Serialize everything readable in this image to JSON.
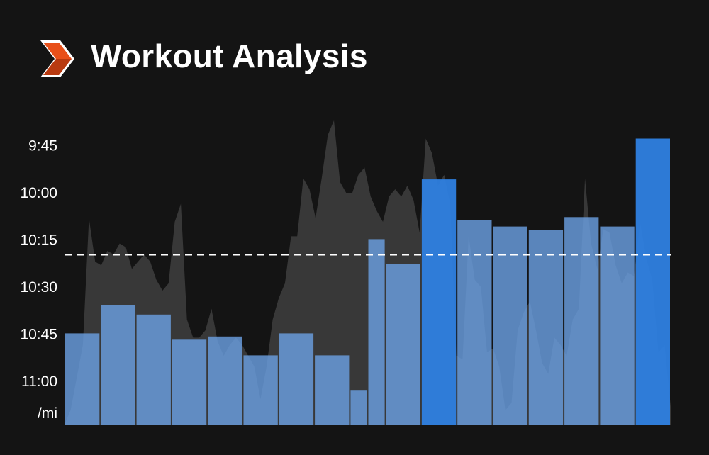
{
  "header": {
    "title": "Workout Analysis",
    "logo_icon": "chevron-logo-icon"
  },
  "colors": {
    "background": "#141414",
    "bar_normal": "#6a9fe0",
    "bar_highlight": "#2e7fe0",
    "elevation": "#383838",
    "avg_line": "#ffffff",
    "logo_orange": "#e8501a"
  },
  "chart_data": {
    "type": "bar",
    "unit_label": "/mi",
    "y_axis": {
      "ticks": [
        "9:45",
        "10:00",
        "10:15",
        "10:30",
        "10:45",
        "11:00"
      ],
      "tick_seconds": [
        585,
        600,
        615,
        630,
        645,
        660
      ],
      "range_seconds": [
        575,
        674
      ],
      "inverted": true
    },
    "pace_splits_seconds": [
      645,
      636,
      639,
      647,
      646,
      652,
      645,
      652,
      663,
      615,
      623,
      596,
      609,
      611,
      612,
      608,
      611,
      583
    ],
    "highlight_splits": [
      11,
      17
    ],
    "split_widths": [
      1,
      1,
      1,
      1,
      1,
      1,
      1,
      1,
      0.5,
      0.5,
      1,
      1,
      1,
      1,
      1,
      1,
      1,
      1
    ],
    "average_pace_seconds": 620,
    "elevation_profile": [
      0,
      20,
      65,
      110,
      285,
      225,
      220,
      240,
      235,
      250,
      245,
      215,
      225,
      235,
      225,
      200,
      185,
      195,
      280,
      305,
      145,
      120,
      120,
      130,
      160,
      115,
      95,
      110,
      120,
      110,
      95,
      80,
      35,
      80,
      145,
      175,
      195,
      260,
      260,
      340,
      325,
      285,
      340,
      400,
      420,
      335,
      320,
      320,
      345,
      355,
      315,
      295,
      280,
      315,
      325,
      315,
      330,
      310,
      265,
      395,
      375,
      330,
      345,
      305,
      95,
      90,
      260,
      200,
      190,
      100,
      105,
      80,
      20,
      30,
      130,
      155,
      170,
      130,
      85,
      70,
      120,
      110,
      95,
      145,
      160,
      340,
      250,
      215,
      270,
      265,
      220,
      195,
      210,
      205,
      280,
      230,
      200,
      100,
      110,
      25
    ]
  }
}
